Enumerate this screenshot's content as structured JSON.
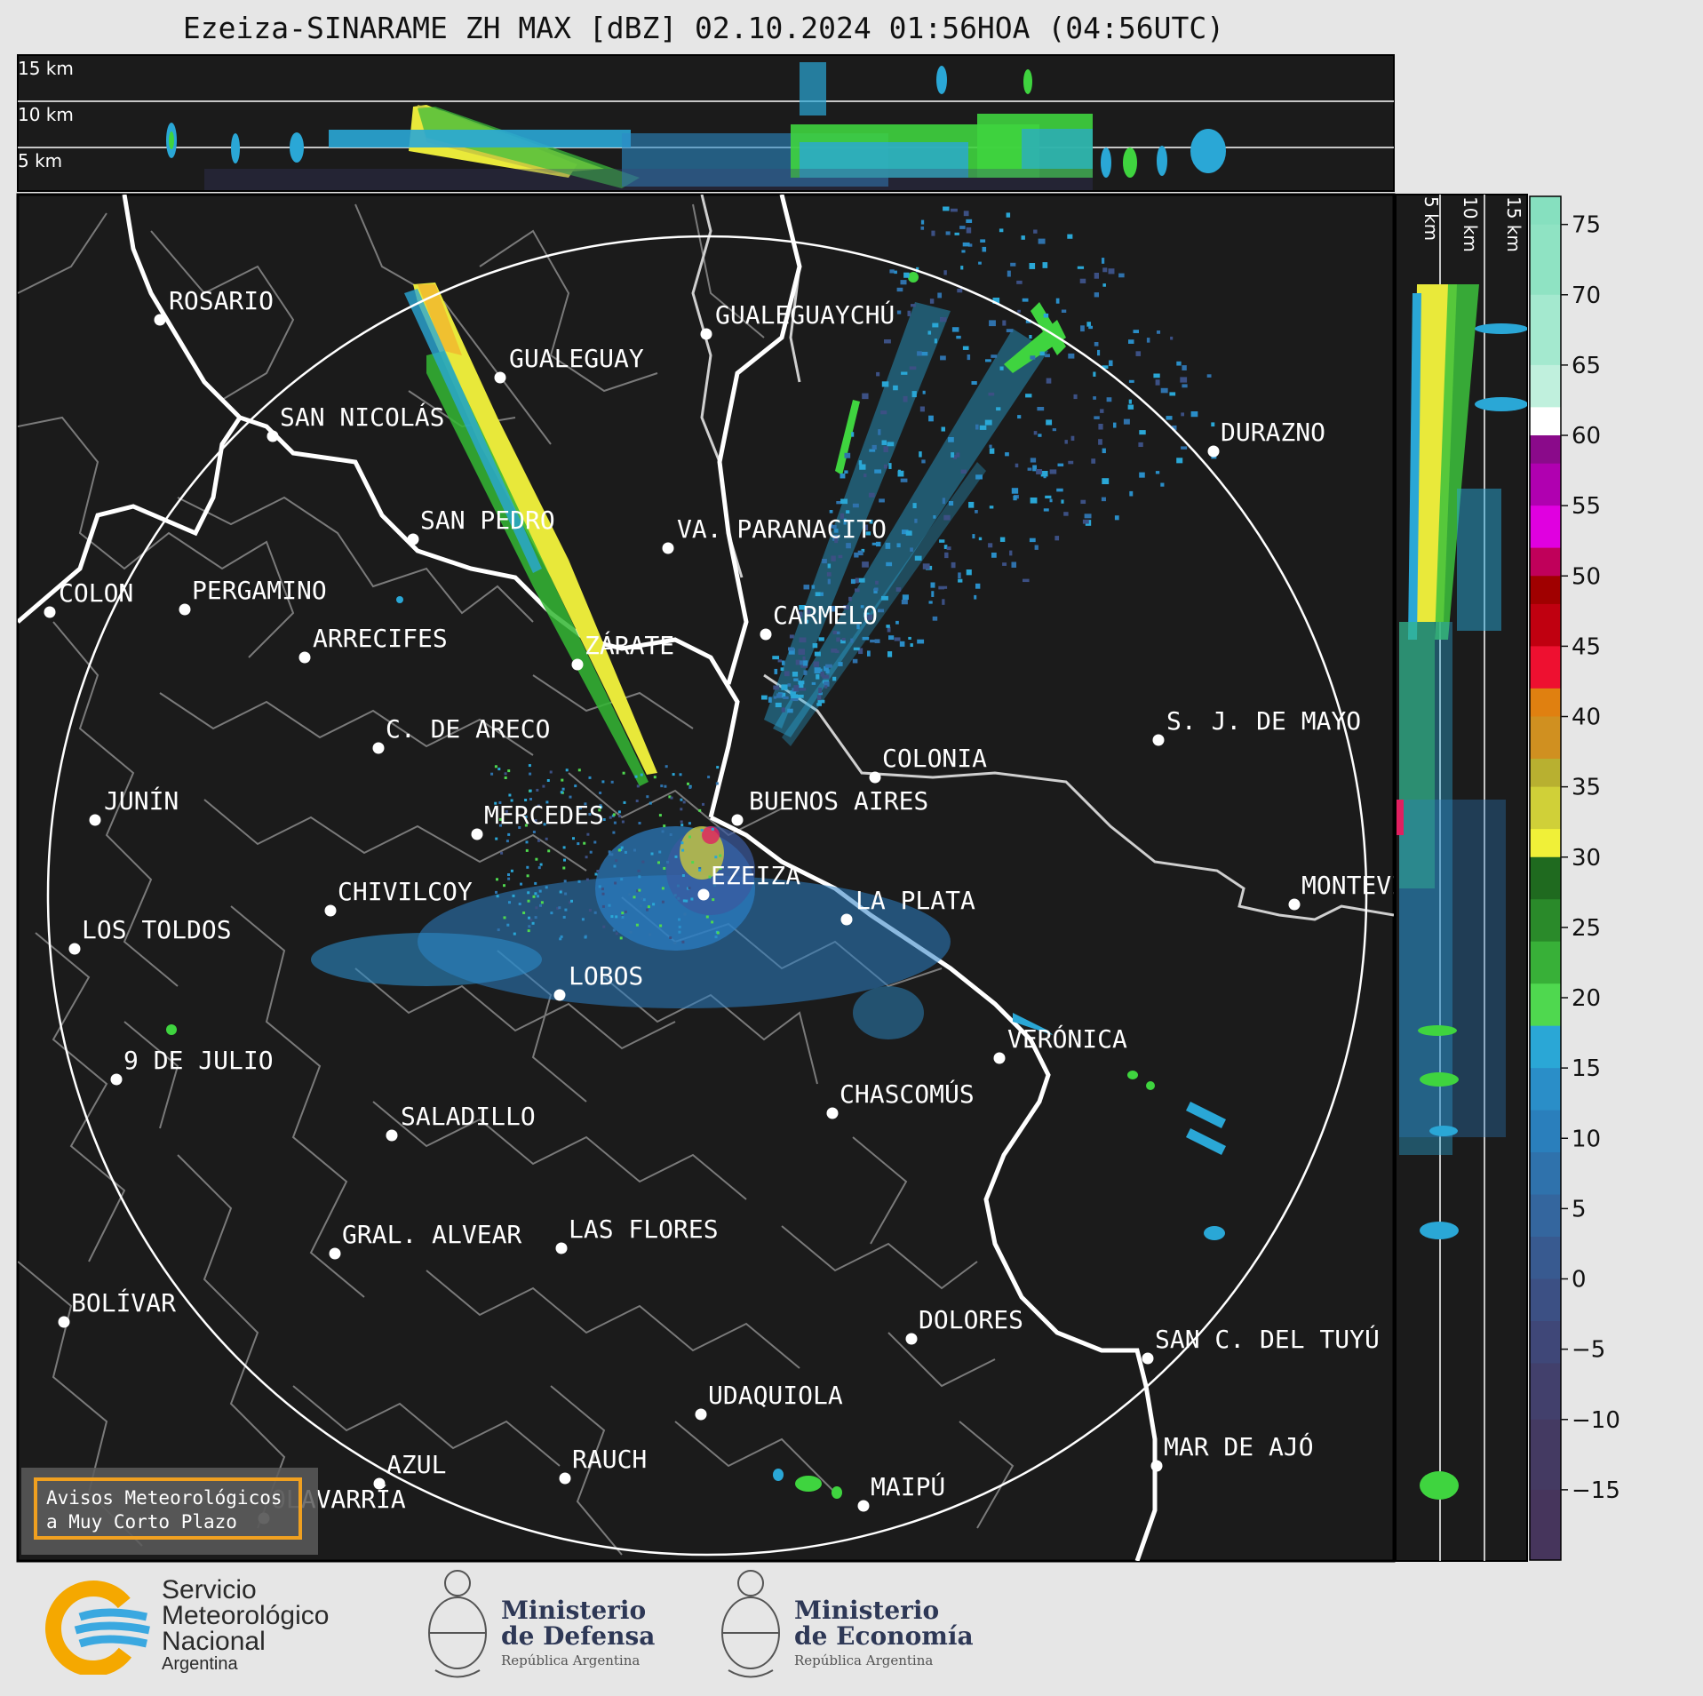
{
  "title": "Ezeiza-SINARAME ZH MAX [dBZ] 02.10.2024 01:56HOA (04:56UTC)",
  "top_panel": {
    "altitude_labels": [
      "15 km",
      "10 km",
      "5 km"
    ]
  },
  "side_panel": {
    "altitude_labels": [
      "5 km",
      "10 km",
      "15 km"
    ]
  },
  "colorbar": {
    "unit": "dBZ",
    "ticks": [
      "75",
      "70",
      "65",
      "60",
      "55",
      "50",
      "45",
      "40",
      "35",
      "30",
      "25",
      "20",
      "15",
      "10",
      "5",
      "0",
      "−5",
      "−10",
      "−15"
    ],
    "range": [
      -20,
      77
    ]
  },
  "cities": [
    {
      "name": "ROSARIO"
    },
    {
      "name": "GUALEGUAYCHÚ"
    },
    {
      "name": "GUALEGUAY"
    },
    {
      "name": "SAN NICOLÁS"
    },
    {
      "name": "DURAZNO"
    },
    {
      "name": "SAN PEDRO"
    },
    {
      "name": "VA. PARANACITO"
    },
    {
      "name": "COLON"
    },
    {
      "name": "PERGAMINO"
    },
    {
      "name": "CARMELO"
    },
    {
      "name": "ARRECIFES"
    },
    {
      "name": "ZÁRATE"
    },
    {
      "name": "S. J. DE MAYO"
    },
    {
      "name": "C. DE ARECO"
    },
    {
      "name": "COLONIA"
    },
    {
      "name": "BUENOS AIRES"
    },
    {
      "name": "JUNÍN"
    },
    {
      "name": "MERCEDES"
    },
    {
      "name": "EZEIZA"
    },
    {
      "name": "CHIVILCOY"
    },
    {
      "name": "LA PLATA"
    },
    {
      "name": "MONTEVIDEO"
    },
    {
      "name": "LOS TOLDOS"
    },
    {
      "name": "LOBOS"
    },
    {
      "name": "VERÓNICA"
    },
    {
      "name": "9 DE JULIO"
    },
    {
      "name": "CHASCOMÚS"
    },
    {
      "name": "SALADILLO"
    },
    {
      "name": "GRAL. ALVEAR"
    },
    {
      "name": "LAS FLORES"
    },
    {
      "name": "BOLÍVAR"
    },
    {
      "name": "DOLORES"
    },
    {
      "name": "SAN C. DEL TUYÚ"
    },
    {
      "name": "UDAQUIOLA"
    },
    {
      "name": "MAR DE AJÓ"
    },
    {
      "name": "AZUL"
    },
    {
      "name": "RAUCH"
    },
    {
      "name": "MAIPÚ"
    },
    {
      "name": "OLAVARRÍA"
    }
  ],
  "alert_box": {
    "line1": "Avisos Meteorológicos",
    "line2": "a Muy Corto Plazo"
  },
  "logos": {
    "smn": {
      "line1": "Servicio",
      "line2": "Meteorológico",
      "line3": "Nacional",
      "line4": "Argentina"
    },
    "defensa": {
      "line1": "Ministerio",
      "line2": "de Defensa",
      "sub": "República Argentina"
    },
    "economia": {
      "line1": "Ministerio",
      "line2": "de Economía",
      "sub": "República Argentina"
    }
  }
}
